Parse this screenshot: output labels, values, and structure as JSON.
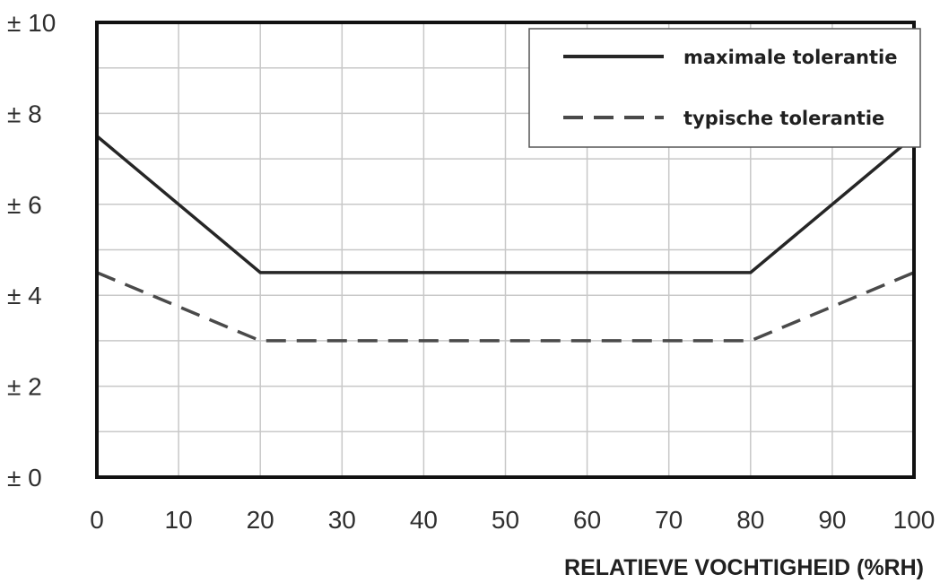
{
  "chart_data": {
    "type": "line",
    "title": "",
    "xlabel": "RELATIEVE VOCHTIGHEID (%RH)",
    "ylabel": "",
    "xlim": [
      0,
      100
    ],
    "ylim": [
      0,
      10
    ],
    "x_ticks": [
      "0",
      "10",
      "20",
      "30",
      "40",
      "50",
      "60",
      "70",
      "80",
      "90",
      "100"
    ],
    "x_tick_values": [
      0,
      10,
      20,
      30,
      40,
      50,
      60,
      70,
      80,
      90,
      100
    ],
    "y_ticks": [
      "± 0",
      "± 2",
      "± 4",
      "± 6",
      "± 8",
      "± 10"
    ],
    "y_tick_values": [
      0,
      2,
      4,
      6,
      8,
      10
    ],
    "grid": true,
    "legend_position": "top-right",
    "series": [
      {
        "name": "maximale tolerantie",
        "style": "solid",
        "color": "#262626",
        "x": [
          0,
          20,
          80,
          100
        ],
        "y": [
          7.5,
          4.5,
          4.5,
          7.5
        ]
      },
      {
        "name": "typische tolerantie",
        "style": "dashed",
        "color": "#4a4a4a",
        "x": [
          0,
          20,
          80,
          100
        ],
        "y": [
          4.5,
          3,
          3,
          4.5
        ]
      }
    ]
  }
}
